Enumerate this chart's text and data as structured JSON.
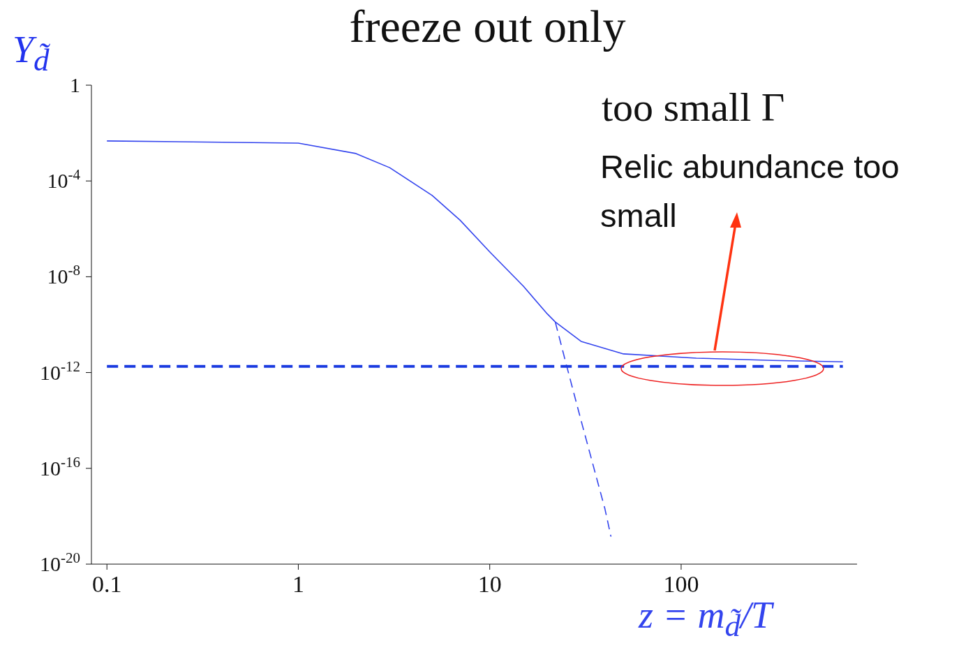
{
  "chart_data": {
    "type": "line",
    "title": "freeze out only",
    "xlabel": "z = m$_{d̃}$/T",
    "ylabel": "Y$_{d̃}$",
    "log": "xy",
    "marker": "none",
    "xlim": [
      0.083,
      830
    ],
    "xticks": [
      0.1,
      1,
      10,
      100
    ],
    "ylim": [
      1e-20,
      1
    ],
    "yticks": [
      {
        "value": 1e-20,
        "label": "10$^{-20}$"
      },
      {
        "value": 1e-16,
        "label": "10$^{-16}$"
      },
      {
        "value": 1e-12,
        "label": "10$^{-12}$"
      },
      {
        "value": 1e-08,
        "label": "10$^{-8}$"
      },
      {
        "value": 0.0001,
        "label": "10$^{-4}$"
      },
      1
    ],
    "series": [
      {
        "color": "#3344ee",
        "line_style": "solid",
        "x": [
          0.1,
          1,
          2,
          3,
          5,
          7,
          10,
          15,
          20,
          22,
          30,
          50,
          120,
          300,
          700
        ],
        "values": [
          0.0047,
          0.0038,
          0.0014,
          0.00036,
          2.5e-05,
          2.3e-06,
          1.1e-07,
          4e-09,
          2.8e-10,
          1.3e-10,
          2e-11,
          6e-12,
          4e-12,
          3.2e-12,
          2.8e-12
        ]
      },
      {
        "color": "#3344ee",
        "line_style": "dashed",
        "x": [
          22,
          25,
          30,
          40,
          43
        ],
        "values": [
          1.3e-10,
          2.5e-12,
          1e-14,
          2e-18,
          1.4e-19
        ]
      },
      {
        "color": "#1a3be0",
        "line_style": "dashed",
        "x": [
          0.1,
          700
        ],
        "values": [
          1.8e-12,
          1.8e-12
        ]
      }
    ],
    "annotations": [
      "too small Γ",
      "Relic abundance too small"
    ]
  }
}
